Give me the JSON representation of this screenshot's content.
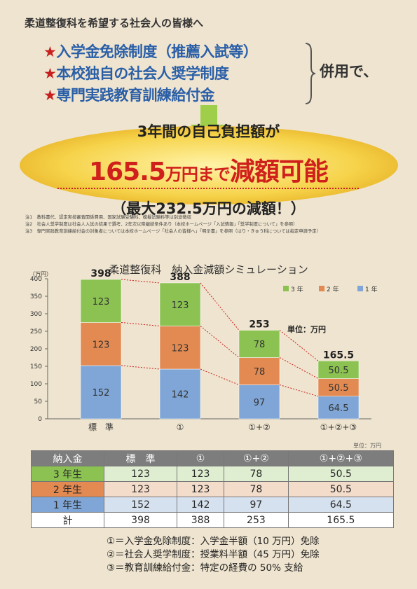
{
  "intro": "柔道整復科を希望する社会人の皆様へ",
  "bullets": [
    {
      "star": "★",
      "text": "入学金免除制度（推薦入試等）"
    },
    {
      "star": "★",
      "text": "本校独自の社会人奨学制度"
    },
    {
      "star": "★",
      "text": "専門実践教育訓練給付金"
    }
  ],
  "heiyou": "併用で、",
  "headline1": "3年間の自己負担額が",
  "headline2_num": "165.5",
  "headline2_mid": "万円まで",
  "headline2_big": "減額可能",
  "headline3": "（最大232.5万円の減額！）",
  "notes": [
    "注1　教科書代、認定実技審査関係費用、国家試験受験料、模擬試験料等は別途徴収",
    "注2　社会人奨学制度は社会人入試の結果で選考、2年次以降継続条件あり（本校ホームページ「入試情報」「奨学制度について」を参照）",
    "注3　専門実践教育訓練給付金の対象者については本校ホームページ「社会人の皆様へ」「明示書」を参照（はり・きゅう科については指定申請予定）"
  ],
  "chart_title": "柔道整復科　納入金減額シミュレーション",
  "chart_data": {
    "type": "bar",
    "stacked": true,
    "ylabel": "（万円）",
    "ylim": [
      0,
      400
    ],
    "yticks": [
      0,
      50,
      100,
      150,
      200,
      250,
      300,
      350,
      400
    ],
    "categories": [
      "標　準",
      "①",
      "①+②",
      "①+②+③"
    ],
    "series": [
      {
        "name": "1 年",
        "color": "#7fa6d6",
        "values": [
          152,
          142,
          97,
          64.5
        ]
      },
      {
        "name": "2 年",
        "color": "#e28a52",
        "values": [
          123,
          123,
          78,
          50.5
        ]
      },
      {
        "name": "3 年",
        "color": "#8cc252",
        "values": [
          123,
          123,
          78,
          50.5
        ]
      }
    ],
    "totals": [
      398,
      388,
      253,
      165.5
    ],
    "unit_label": "単位：万円",
    "legend": "top-right"
  },
  "table": {
    "unit": "単位：万円",
    "header": [
      "納入金",
      "標　準",
      "①",
      "①+②",
      "①+②+③"
    ],
    "rows": [
      {
        "label": "3 年生",
        "values": [
          "123",
          "123",
          "78",
          "50.5"
        ]
      },
      {
        "label": "2 年生",
        "values": [
          "123",
          "123",
          "78",
          "50.5"
        ]
      },
      {
        "label": "1 年生",
        "values": [
          "152",
          "142",
          "97",
          "64.5"
        ]
      },
      {
        "label": "計",
        "values": [
          "398",
          "388",
          "253",
          "165.5"
        ]
      }
    ]
  },
  "legend_lines": [
    "①＝入学金免除制度：入学金半額（10 万円）免除",
    "②＝社会人奨学制度：授業料半額（45 万円）免除",
    "③＝教育訓練給付金：特定の経費の 50% 支給"
  ]
}
